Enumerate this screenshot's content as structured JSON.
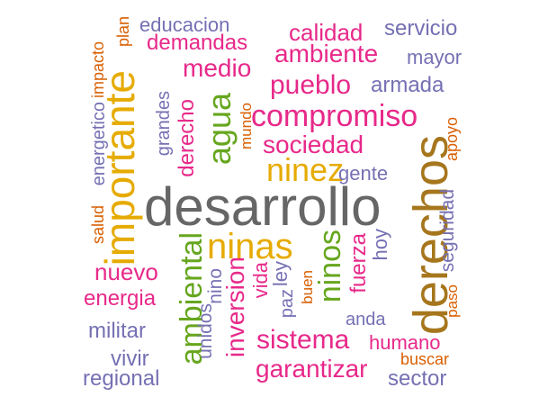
{
  "colors": {
    "pink": "#E7298A",
    "purple": "#7570B3",
    "orange": "#D95F02",
    "gold": "#E6AB02",
    "green": "#66A61E",
    "brown": "#A6761D",
    "gray": "#666666"
  },
  "words": [
    {
      "text": "desarrollo",
      "color": "gray",
      "weight": 10
    },
    {
      "text": "derechos",
      "color": "brown",
      "weight": 8
    },
    {
      "text": "importante",
      "color": "gold",
      "weight": 7
    },
    {
      "text": "ninas",
      "color": "gold",
      "weight": 7
    },
    {
      "text": "ninos",
      "color": "green",
      "weight": 6
    },
    {
      "text": "ambiental",
      "color": "green",
      "weight": 6
    },
    {
      "text": "compromiso",
      "color": "pink",
      "weight": 6
    },
    {
      "text": "ninez",
      "color": "gold",
      "weight": 6
    },
    {
      "text": "agua",
      "color": "green",
      "weight": 6
    },
    {
      "text": "inversion",
      "color": "pink",
      "weight": 5
    },
    {
      "text": "pueblo",
      "color": "pink",
      "weight": 5
    },
    {
      "text": "ambiente",
      "color": "pink",
      "weight": 5
    },
    {
      "text": "sociedad",
      "color": "pink",
      "weight": 5
    },
    {
      "text": "sistema",
      "color": "pink",
      "weight": 5
    },
    {
      "text": "garantizar",
      "color": "pink",
      "weight": 5
    },
    {
      "text": "medio",
      "color": "pink",
      "weight": 5
    },
    {
      "text": "nuevo",
      "color": "pink",
      "weight": 4
    },
    {
      "text": "fuerza",
      "color": "pink",
      "weight": 4
    },
    {
      "text": "derecho",
      "color": "pink",
      "weight": 4
    },
    {
      "text": "calidad",
      "color": "pink",
      "weight": 4
    },
    {
      "text": "demandas",
      "color": "pink",
      "weight": 4
    },
    {
      "text": "energia",
      "color": "pink",
      "weight": 4
    },
    {
      "text": "humano",
      "color": "pink",
      "weight": 4
    },
    {
      "text": "vida",
      "color": "pink",
      "weight": 3
    },
    {
      "text": "servicio",
      "color": "purple",
      "weight": 3
    },
    {
      "text": "armada",
      "color": "purple",
      "weight": 3
    },
    {
      "text": "militar",
      "color": "purple",
      "weight": 3
    },
    {
      "text": "regional",
      "color": "purple",
      "weight": 3
    },
    {
      "text": "sector",
      "color": "purple",
      "weight": 3
    },
    {
      "text": "vivir",
      "color": "purple",
      "weight": 3
    },
    {
      "text": "gente",
      "color": "purple",
      "weight": 3
    },
    {
      "text": "mayor",
      "color": "purple",
      "weight": 3
    },
    {
      "text": "educacion",
      "color": "purple",
      "weight": 3
    },
    {
      "text": "ley",
      "color": "purple",
      "weight": 3
    },
    {
      "text": "hoy",
      "color": "purple",
      "weight": 3
    },
    {
      "text": "seguridad",
      "color": "purple",
      "weight": 3
    },
    {
      "text": "unidos",
      "color": "purple",
      "weight": 3
    },
    {
      "text": "nino",
      "color": "purple",
      "weight": 3
    },
    {
      "text": "grandes",
      "color": "purple",
      "weight": 3
    },
    {
      "text": "energetico",
      "color": "purple",
      "weight": 3
    },
    {
      "text": "anda",
      "color": "purple",
      "weight": 3
    },
    {
      "text": "paz",
      "color": "purple",
      "weight": 3
    },
    {
      "text": "salud",
      "color": "orange",
      "weight": 2
    },
    {
      "text": "impacto",
      "color": "orange",
      "weight": 2
    },
    {
      "text": "plan",
      "color": "orange",
      "weight": 2
    },
    {
      "text": "mundo",
      "color": "orange",
      "weight": 2
    },
    {
      "text": "apoyo",
      "color": "orange",
      "weight": 2
    },
    {
      "text": "buen",
      "color": "orange",
      "weight": 2
    },
    {
      "text": "paso",
      "color": "orange",
      "weight": 2
    },
    {
      "text": "buscar",
      "color": "orange",
      "weight": 2
    }
  ]
}
